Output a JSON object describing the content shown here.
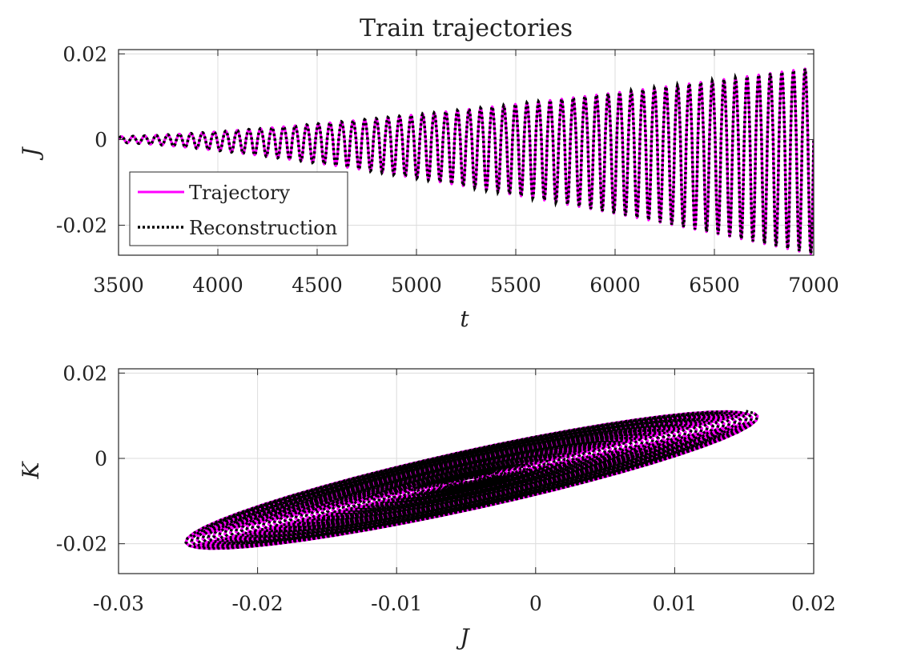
{
  "chart_data": [
    {
      "type": "line",
      "title": "Train trajectories",
      "xlabel": "t",
      "ylabel": "J",
      "xlim": [
        3500,
        7000
      ],
      "ylim": [
        -0.027,
        0.021
      ],
      "xticks": [
        3500,
        4000,
        4500,
        5000,
        5500,
        6000,
        6500,
        7000
      ],
      "xtick_labels": [
        "3500",
        "4000",
        "4500",
        "5000",
        "5500",
        "6000",
        "6500",
        "7000"
      ],
      "yticks": [
        0.02,
        0,
        -0.02
      ],
      "ytick_labels": [
        "0.02",
        "0",
        "-0.02"
      ],
      "grid": true,
      "legend": "bottom-left",
      "series": [
        {
          "name": "Trajectory",
          "color": "#ff00ff",
          "style": "solid",
          "description_values": {
            "amplitude_start": 0.0007,
            "amplitude_end_max": 0.0168,
            "amplitude_end_min": -0.0268,
            "num_cycles": 60
          }
        },
        {
          "name": "Reconstruction",
          "color": "#000000",
          "style": "dotted",
          "description_values": {
            "amplitude_start": 0.0007,
            "amplitude_end_max": 0.0168,
            "amplitude_end_min": -0.0268,
            "num_cycles": 60
          }
        }
      ]
    },
    {
      "type": "line",
      "title": "",
      "xlabel": "J",
      "ylabel": "K",
      "xlim": [
        -0.03,
        0.02
      ],
      "ylim": [
        -0.027,
        0.021
      ],
      "xticks": [
        -0.03,
        -0.02,
        -0.01,
        0,
        0.01,
        0.02
      ],
      "xtick_labels": [
        "-0.03",
        "-0.02",
        "-0.01",
        "0",
        "0.01",
        "0.02"
      ],
      "yticks": [
        0.02,
        0,
        -0.02
      ],
      "ytick_labels": [
        "0.02",
        "0",
        "-0.02"
      ],
      "grid": true,
      "series": [
        {
          "name": "",
          "color": "#ff00ff",
          "style": "solid"
        },
        {
          "name": "",
          "color": "#000000",
          "style": "dotted"
        }
      ]
    }
  ]
}
